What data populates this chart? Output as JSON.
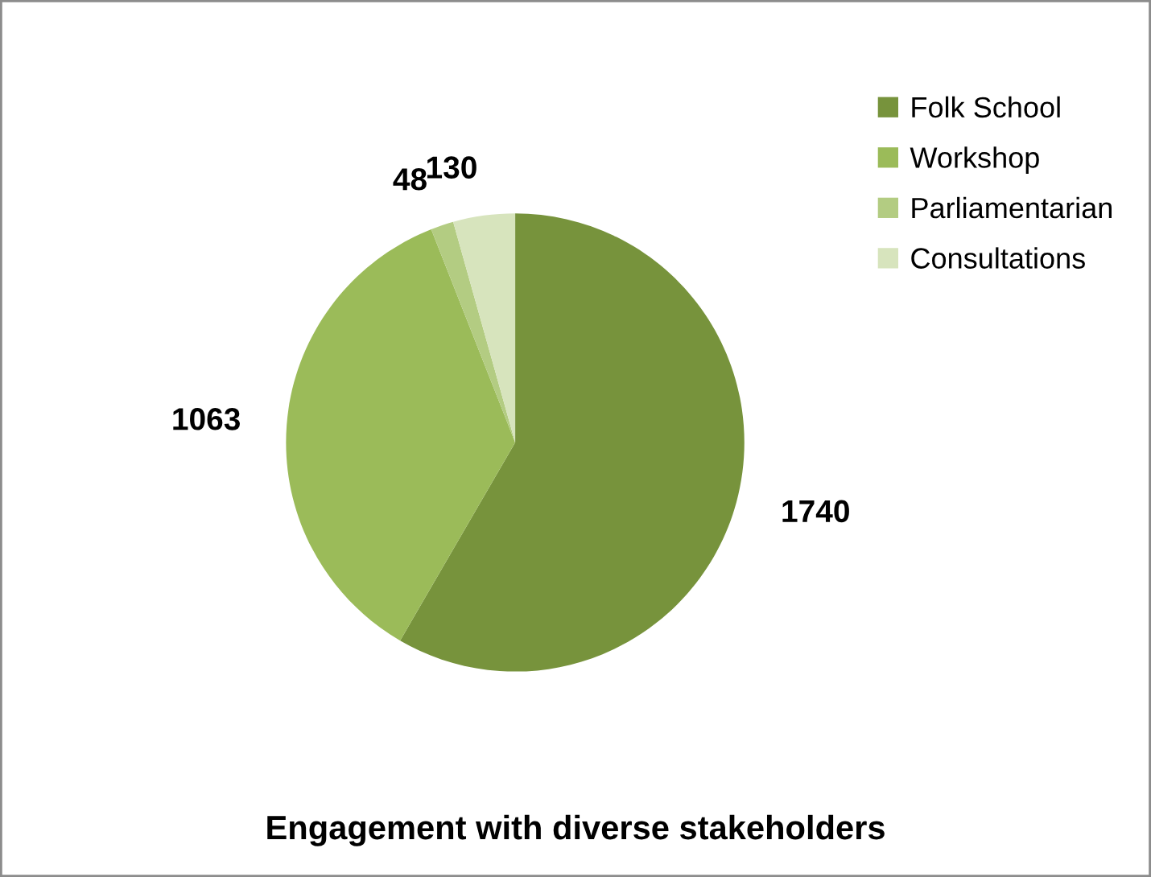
{
  "chart_data": {
    "type": "pie",
    "title": "Engagement with diverse stakeholders",
    "categories": [
      "Folk School",
      "Workshop",
      "Parliamentarian",
      "Consultations"
    ],
    "values": [
      1740,
      1063,
      48,
      130
    ],
    "colors": [
      "#77933c",
      "#9bbb59",
      "#b3cc82",
      "#d7e4bd"
    ],
    "data_labels": true,
    "legend": "right"
  }
}
